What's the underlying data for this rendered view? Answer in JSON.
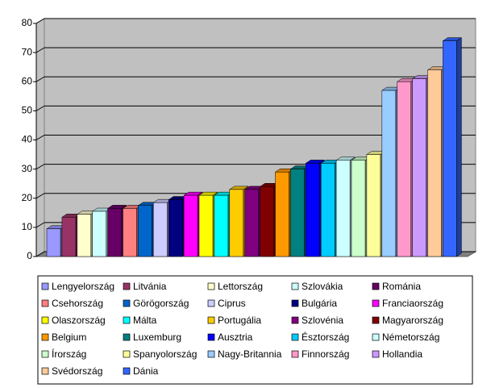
{
  "chart_data": {
    "type": "bar",
    "categories": [
      "Lengyelország",
      "Litvánia",
      "Lettország",
      "Szlovákia",
      "Románia",
      "Csehország",
      "Görögország",
      "Ciprus",
      "Bulgária",
      "Franciaország",
      "Olaszország",
      "Málta",
      "Portugália",
      "Szlovénia",
      "Magyarország",
      "Belgium",
      "Luxemburg",
      "Ausztria",
      "Észtország",
      "Németország",
      "Írország",
      "Spanyolország",
      "Nagy-Britannia",
      "Finnország",
      "Hollandia",
      "Svédország",
      "Dánia"
    ],
    "values": [
      9.5,
      13.5,
      14.5,
      15.5,
      16.5,
      16.5,
      17.5,
      18.5,
      19.5,
      21,
      21,
      21,
      23,
      23,
      24,
      29,
      30,
      32,
      32,
      33,
      33,
      35,
      57,
      60,
      61,
      64,
      74
    ],
    "colors": [
      "#9999ff",
      "#993366",
      "#ffffcc",
      "#ccffff",
      "#660066",
      "#ff8080",
      "#0066cc",
      "#ccccff",
      "#000080",
      "#ff00ff",
      "#ffff00",
      "#00ffff",
      "#ffcc00",
      "#800080",
      "#800000",
      "#ff9900",
      "#008080",
      "#0000ff",
      "#00ccff",
      "#ccffff",
      "#ccffcc",
      "#ffff99",
      "#99ccff",
      "#ff99cc",
      "#cc99ff",
      "#ffcc99",
      "#3366ff"
    ],
    "ylim": [
      0,
      80
    ],
    "yticks": [
      0,
      10,
      20,
      30,
      40,
      50,
      60,
      70,
      80
    ],
    "grid": true,
    "legend": "bottom"
  }
}
